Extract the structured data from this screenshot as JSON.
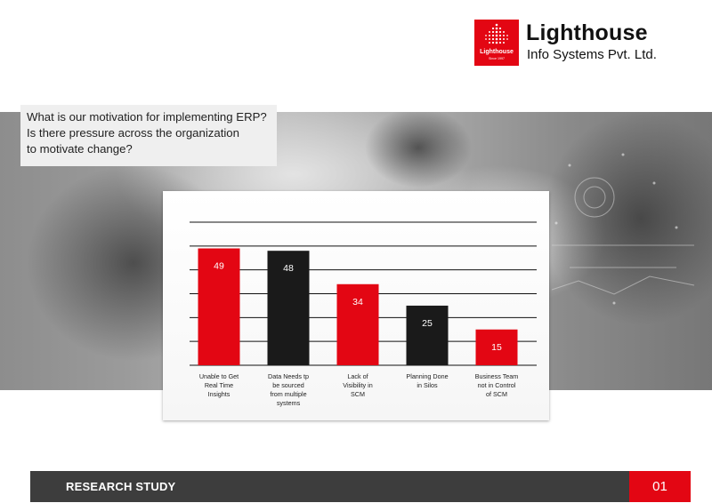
{
  "logo": {
    "box_text": "Lighthouse",
    "since": "Since 1997",
    "name": "Lighthouse",
    "subtitle": "Info Systems Pvt. Ltd."
  },
  "question": {
    "lines": [
      "What is our motivation for implementing ERP?",
      "Is there pressure across the organization",
      "to motivate change?"
    ]
  },
  "chart_data": {
    "type": "bar",
    "categories": [
      [
        "Unable to Get",
        "Real Time",
        "Insights"
      ],
      [
        "Data Needs tp",
        "be sourced",
        "from multiple",
        "systems"
      ],
      [
        "Lack of",
        "Visibility in",
        "SCM"
      ],
      [
        "Planning Done",
        "in Silos"
      ],
      [
        "Business Team",
        "not in Control",
        "of SCM"
      ]
    ],
    "values": [
      49,
      48,
      34,
      25,
      15
    ],
    "data_labels": [
      "49",
      "48",
      "34",
      "25",
      "15"
    ],
    "colors": [
      "#e30613",
      "#1a1a1a",
      "#e30613",
      "#1a1a1a",
      "#e30613"
    ],
    "ylim": [
      0,
      60
    ],
    "grid": true,
    "title": "",
    "xlabel": "",
    "ylabel": ""
  },
  "footer": {
    "label": "RESEARCH STUDY",
    "page": "01"
  },
  "colors": {
    "accent": "#e30613",
    "dark": "#3d3d3d"
  }
}
